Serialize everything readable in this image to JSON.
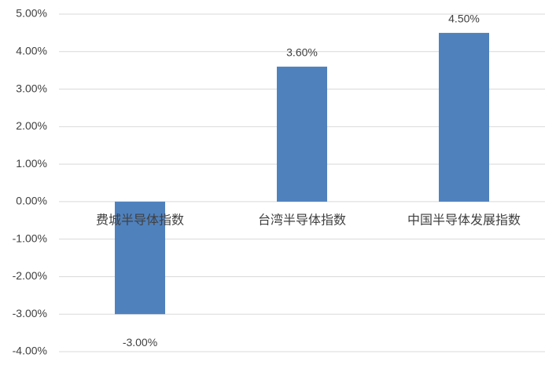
{
  "chart_data": {
    "type": "bar",
    "categories": [
      "费城半导体指数",
      "台湾半导体指数",
      "中国半导体发展指数"
    ],
    "values": [
      -3,
      3.6,
      4.5
    ],
    "value_labels": [
      "-3.00%",
      "3.60%",
      "4.50%"
    ],
    "color": "#4f81bd",
    "ylim": [
      -4,
      5
    ],
    "yticks": [
      {
        "value": -4,
        "label": "-4.00%"
      },
      {
        "value": -3,
        "label": "-3.00%"
      },
      {
        "value": -2,
        "label": "-2.00%"
      },
      {
        "value": -1,
        "label": "-1.00%"
      },
      {
        "value": 0,
        "label": "0.00%"
      },
      {
        "value": 1,
        "label": "1.00%"
      },
      {
        "value": 2,
        "label": "2.00%"
      },
      {
        "value": 3,
        "label": "3.00%"
      },
      {
        "value": 4,
        "label": "4.00%"
      },
      {
        "value": 5,
        "label": "5.00%"
      }
    ],
    "grid": true
  }
}
